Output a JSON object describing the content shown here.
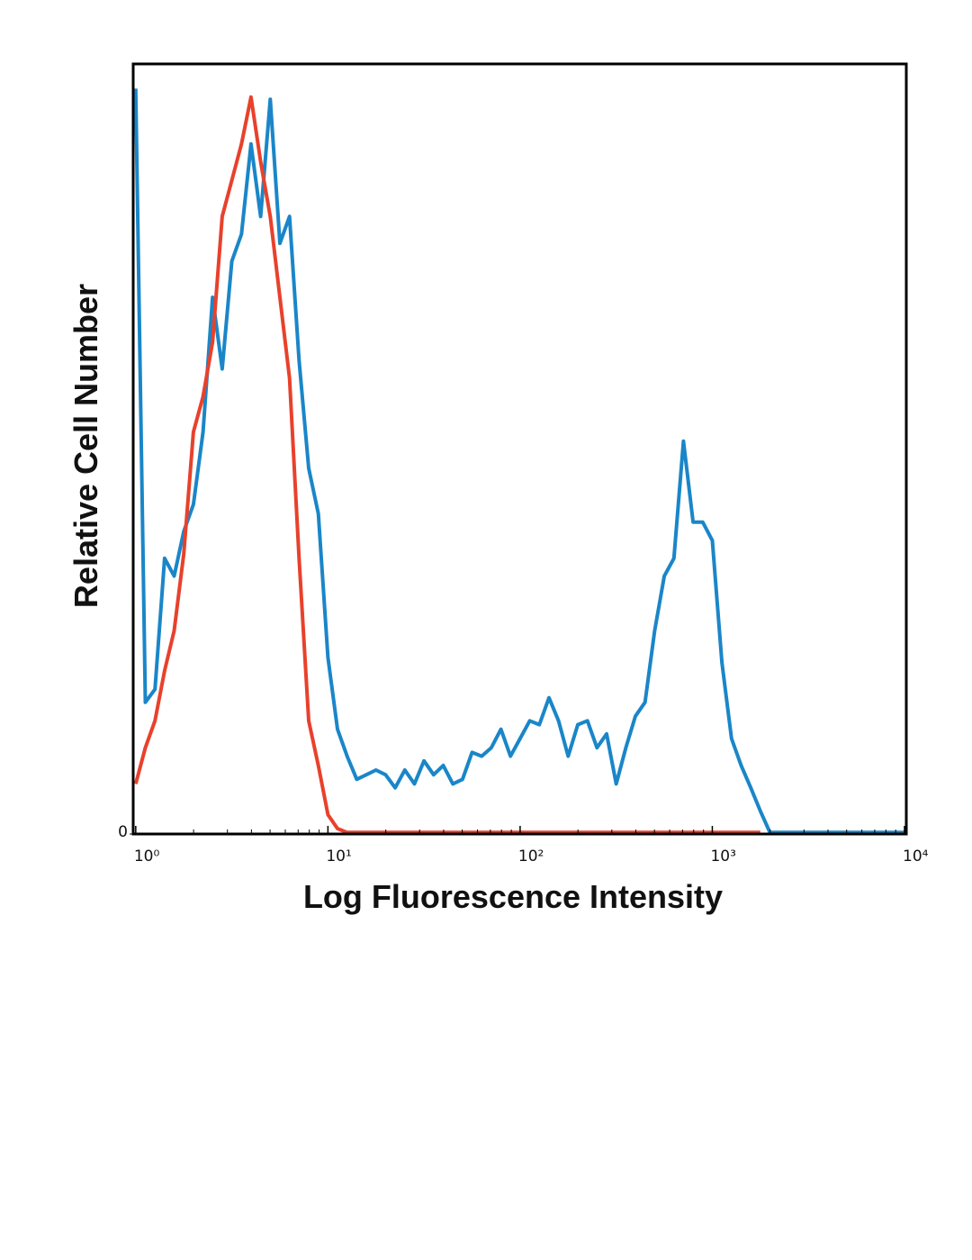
{
  "chart_data": {
    "type": "line",
    "xlabel": "Log Fluorescence Intensity",
    "ylabel": "Relative Cell Number",
    "log_x": true,
    "xlim": [
      0.97,
      10000
    ],
    "ylim": [
      0,
      100
    ],
    "xticks": [
      {
        "value": 1,
        "label": "10⁰"
      },
      {
        "value": 10,
        "label": "10¹"
      },
      {
        "value": 100,
        "label": "10²"
      },
      {
        "value": 1000,
        "label": "10³"
      },
      {
        "value": 10000,
        "label": "10⁴"
      }
    ],
    "xminorticks": [
      2,
      3,
      4,
      5,
      6,
      7,
      8,
      9,
      20,
      30,
      40,
      50,
      60,
      70,
      80,
      90,
      200,
      300,
      400,
      500,
      600,
      700,
      800,
      900,
      2000,
      3000,
      4000,
      5000,
      6000,
      7000,
      8000,
      9000
    ],
    "yticks": [
      0
    ],
    "x": [
      1,
      1.122,
      1.259,
      1.413,
      1.585,
      1.778,
      1.995,
      2.239,
      2.512,
      2.818,
      3.162,
      3.548,
      3.981,
      4.467,
      5.012,
      5.623,
      6.31,
      7.079,
      7.943,
      8.913,
      10,
      11.22,
      12.59,
      14.13,
      15.85,
      17.78,
      19.95,
      22.39,
      25.12,
      28.18,
      31.62,
      35.48,
      39.81,
      44.67,
      50.12,
      56.23,
      63.1,
      70.79,
      79.43,
      89.13,
      100,
      112.2,
      125.9,
      141.3,
      158.5,
      177.8,
      199.5,
      223.9,
      251.2,
      281.8,
      316.2,
      354.8,
      398.1,
      446.7,
      501.2,
      562.3,
      631,
      707.9,
      794.3,
      891.3,
      1000,
      1122,
      1259,
      1413,
      1585,
      1778,
      1995,
      2239,
      2512,
      2818,
      3162,
      3548,
      3981,
      4467,
      5012,
      5623,
      6310,
      7079,
      7943,
      8913,
      10000
    ],
    "series": [
      {
        "color": "#1a86c8",
        "values": [
          96.8,
          17.1,
          18.8,
          35.8,
          33.5,
          39.3,
          42.8,
          52.2,
          69.7,
          60.4,
          74.4,
          77.9,
          89.6,
          80.2,
          95.4,
          76.7,
          80.2,
          61.5,
          47.5,
          41.6,
          22.9,
          13.6,
          10.1,
          7.1,
          7.7,
          8.3,
          7.7,
          6.0,
          8.3,
          6.5,
          9.5,
          7.7,
          8.9,
          6.5,
          7.1,
          10.6,
          10.1,
          11.2,
          13.6,
          10.1,
          12.4,
          14.7,
          14.2,
          17.7,
          14.7,
          10.1,
          14.2,
          14.7,
          11.2,
          13.0,
          6.5,
          11.2,
          15.3,
          17.1,
          26.4,
          33.5,
          35.8,
          51.0,
          40.5,
          40.5,
          38.1,
          22.3,
          12.4,
          8.9,
          6.0,
          3.0,
          0.2,
          0.2,
          0.2,
          0.2,
          0.2,
          0.2,
          0.2,
          0.2,
          0.2,
          0.2,
          0.2,
          0.2,
          0.2,
          0.2,
          0.2
        ]
      },
      {
        "color": "#e8412c",
        "values": [
          6.5,
          11.2,
          14.7,
          21.2,
          26.4,
          36.4,
          52.2,
          56.8,
          63.9,
          80.2,
          84.9,
          89.6,
          95.7,
          87.3,
          80.2,
          69.7,
          59.2,
          35.8,
          14.7,
          8.9,
          2.5,
          0.7,
          0.2,
          0.2,
          0.2,
          0.2,
          0.2,
          0.2,
          0.2,
          0.2,
          0.2,
          0.2,
          0.2,
          0.2,
          0.2,
          0.2,
          0.2,
          0.2,
          0.2,
          0.2,
          0.2,
          0.2,
          0.2,
          0.2,
          0.2,
          0.2,
          0.2,
          0.2,
          0.2,
          0.2,
          0.2,
          0.2,
          0.2,
          0.2,
          0.2,
          0.2,
          0.2,
          0.2,
          0.2,
          0.2,
          0.2,
          0.2,
          0.2,
          0.2,
          0.2,
          0.2,
          null,
          null,
          null,
          null,
          null,
          null,
          null,
          null,
          null,
          null,
          null,
          null,
          null,
          null,
          null
        ]
      }
    ]
  }
}
